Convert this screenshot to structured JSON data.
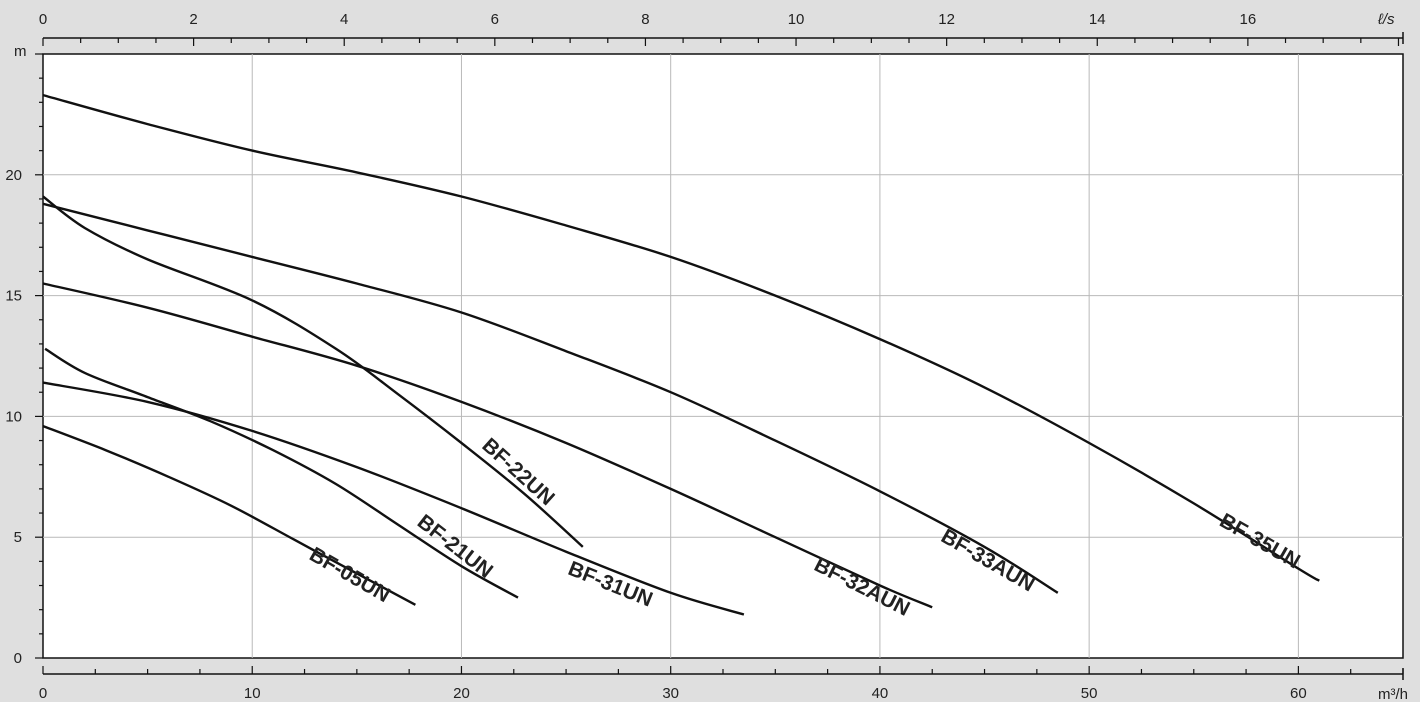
{
  "chart_data": {
    "type": "line",
    "title": "",
    "xlabel": "m³/h",
    "ylabel": "m",
    "x2label": "ℓ/s",
    "xlim": [
      0,
      65
    ],
    "ylim": [
      0,
      25
    ],
    "x2lim": [
      0,
      18.06
    ],
    "xticks": [
      0,
      10,
      20,
      30,
      40,
      50,
      60
    ],
    "yticks": [
      0,
      5,
      10,
      15,
      20
    ],
    "x2ticks": [
      0,
      2,
      4,
      6,
      8,
      10,
      12,
      14,
      16
    ],
    "grid": true,
    "legend": "none",
    "series": [
      {
        "name": "BF-05UN",
        "label_at": [
          14.5,
          3.2
        ],
        "label_angle": 30,
        "points": [
          [
            0,
            9.6
          ],
          [
            3,
            8.6
          ],
          [
            6,
            7.5
          ],
          [
            9,
            6.3
          ],
          [
            12,
            4.9
          ],
          [
            15,
            3.5
          ],
          [
            17.8,
            2.2
          ]
        ]
      },
      {
        "name": "BF-21UN",
        "label_at": [
          19.5,
          4.4
        ],
        "label_angle": 38,
        "points": [
          [
            0.1,
            12.8
          ],
          [
            2,
            11.8
          ],
          [
            5,
            10.8
          ],
          [
            8,
            9.8
          ],
          [
            11,
            8.6
          ],
          [
            14,
            7.2
          ],
          [
            17,
            5.5
          ],
          [
            20,
            3.8
          ],
          [
            22.7,
            2.5
          ]
        ]
      },
      {
        "name": "BF-22UN",
        "label_at": [
          22.5,
          7.5
        ],
        "label_angle": 42,
        "points": [
          [
            0,
            19.1
          ],
          [
            2,
            17.8
          ],
          [
            5,
            16.5
          ],
          [
            10,
            14.8
          ],
          [
            14,
            12.8
          ],
          [
            17,
            10.9
          ],
          [
            20,
            8.9
          ],
          [
            23,
            6.8
          ],
          [
            25.8,
            4.6
          ]
        ]
      },
      {
        "name": "BF-31UN",
        "label_at": [
          27,
          2.8
        ],
        "label_angle": 22,
        "points": [
          [
            0,
            11.4
          ],
          [
            5,
            10.6
          ],
          [
            10,
            9.4
          ],
          [
            15,
            7.9
          ],
          [
            20,
            6.2
          ],
          [
            25,
            4.4
          ],
          [
            30,
            2.7
          ],
          [
            33.5,
            1.8
          ]
        ]
      },
      {
        "name": "BF-32AUN",
        "label_at": [
          39,
          2.7
        ],
        "label_angle": 27,
        "points": [
          [
            0,
            15.5
          ],
          [
            5,
            14.5
          ],
          [
            10,
            13.3
          ],
          [
            15,
            12.1
          ],
          [
            20,
            10.6
          ],
          [
            25,
            8.9
          ],
          [
            30,
            7.0
          ],
          [
            35,
            5.0
          ],
          [
            40,
            3.0
          ],
          [
            42.5,
            2.1
          ]
        ]
      },
      {
        "name": "BF-33AUN",
        "label_at": [
          45,
          3.8
        ],
        "label_angle": 30,
        "points": [
          [
            0,
            18.8
          ],
          [
            5,
            17.7
          ],
          [
            10,
            16.6
          ],
          [
            15,
            15.5
          ],
          [
            20,
            14.3
          ],
          [
            25,
            12.7
          ],
          [
            30,
            11.0
          ],
          [
            35,
            9.0
          ],
          [
            40,
            6.9
          ],
          [
            45,
            4.6
          ],
          [
            48.5,
            2.7
          ]
        ]
      },
      {
        "name": "BF-35UN",
        "label_at": [
          58,
          4.6
        ],
        "label_angle": 30,
        "points": [
          [
            0,
            23.3
          ],
          [
            5,
            22.1
          ],
          [
            10,
            21.0
          ],
          [
            15,
            20.1
          ],
          [
            20,
            19.1
          ],
          [
            25,
            17.9
          ],
          [
            30,
            16.6
          ],
          [
            35,
            15.0
          ],
          [
            40,
            13.2
          ],
          [
            45,
            11.2
          ],
          [
            50,
            8.9
          ],
          [
            55,
            6.4
          ],
          [
            60,
            3.7
          ],
          [
            61,
            3.2
          ]
        ]
      }
    ]
  }
}
